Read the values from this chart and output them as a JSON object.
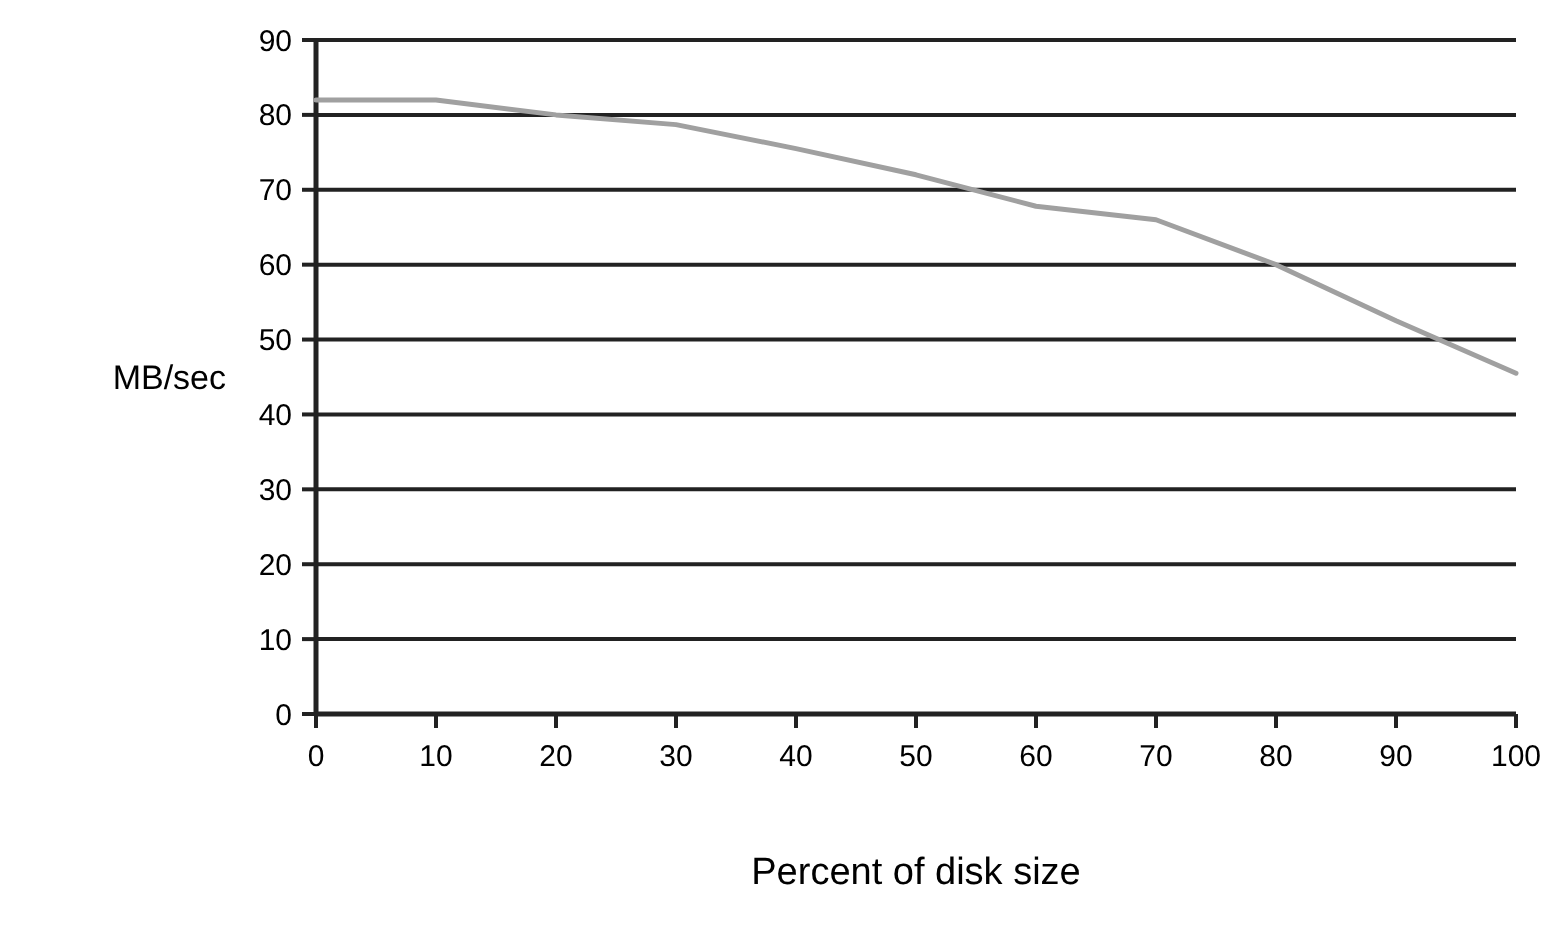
{
  "chart_data": {
    "type": "line",
    "xlabel": "Percent of disk size",
    "ylabel": "MB/sec",
    "x": [
      0,
      10,
      20,
      30,
      40,
      50,
      60,
      70,
      80,
      90,
      100
    ],
    "series": [
      {
        "color": "#a0a0a0",
        "values": [
          82,
          82,
          80,
          78.7,
          75.5,
          72,
          67.8,
          66,
          60,
          52.5,
          45.5
        ]
      }
    ],
    "xlim": [
      0,
      100
    ],
    "xticks": [
      0,
      10,
      20,
      30,
      40,
      50,
      60,
      70,
      80,
      90,
      100
    ],
    "ylim": [
      0,
      90
    ],
    "yticks": [
      0,
      10,
      20,
      30,
      40,
      50,
      60,
      70,
      80,
      90
    ],
    "grid": "y",
    "marker": "none",
    "line_style": "solid"
  }
}
